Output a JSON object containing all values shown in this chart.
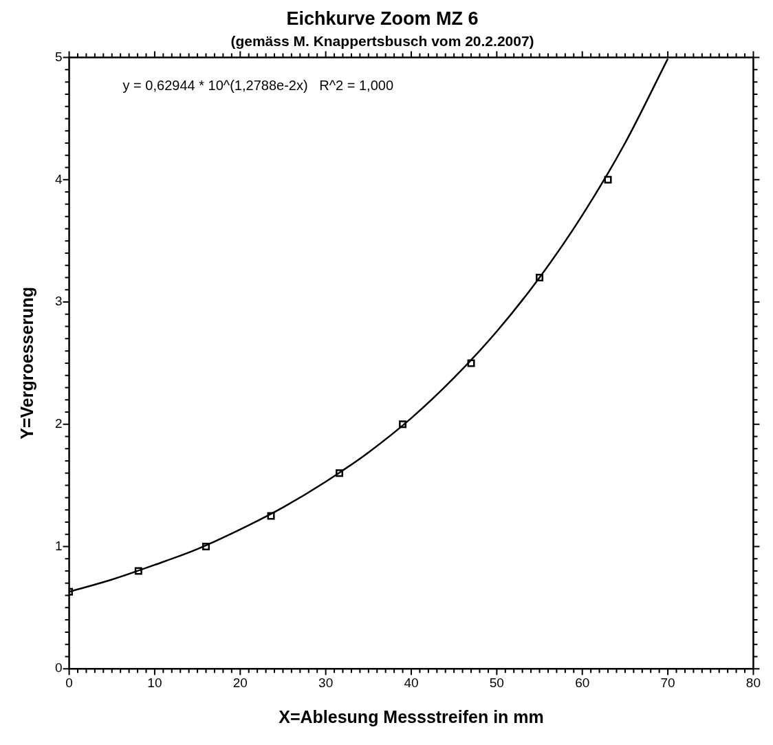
{
  "chart_data": {
    "type": "scatter",
    "title": "Eichkurve Zoom MZ 6",
    "subtitle": "(gemäss M. Knappertsbusch vom 20.2.2007)",
    "xlabel": "X=Ablesung Messstreifen in mm",
    "ylabel": "Y=Vergroesserung",
    "annotations": [
      "y = 0,62944 * 10^(1,2788e-2x)   R^2 = 1,000"
    ],
    "series": [
      {
        "type": "scatter",
        "color": "#000000",
        "marker": "square",
        "x": [
          0,
          8.1,
          16,
          23.6,
          31.6,
          39,
          47,
          55,
          63
        ],
        "values": [
          0.63,
          0.8,
          1.0,
          1.25,
          1.6,
          2.0,
          2.5,
          3.2,
          4.0
        ]
      },
      {
        "type": "line",
        "color": "#000000",
        "marker": "none",
        "line_style": "solid",
        "x": [
          0,
          5,
          10,
          15,
          20,
          25,
          30,
          35,
          40,
          45,
          50,
          55,
          60,
          65,
          70
        ],
        "values": [
          0.63,
          0.73,
          0.85,
          0.98,
          1.14,
          1.32,
          1.53,
          1.77,
          2.05,
          2.38,
          2.76,
          3.2,
          3.71,
          4.3,
          4.99
        ]
      }
    ],
    "xlim": [
      0,
      80
    ],
    "ylim": [
      0,
      5
    ],
    "grid": false,
    "legend": false,
    "xticks": [
      0,
      {
        "value": 1,
        "label": null
      },
      {
        "value": 2,
        "label": null
      },
      {
        "value": 3,
        "label": null
      },
      {
        "value": 4,
        "label": null
      },
      {
        "value": 5,
        "label": null
      },
      {
        "value": 6,
        "label": null
      },
      {
        "value": 7,
        "label": null
      },
      {
        "value": 8,
        "label": null
      },
      {
        "value": 9,
        "label": null
      },
      10,
      {
        "value": 11,
        "label": null
      },
      {
        "value": 12,
        "label": null
      },
      {
        "value": 13,
        "label": null
      },
      {
        "value": 14,
        "label": null
      },
      {
        "value": 15,
        "label": null
      },
      {
        "value": 16,
        "label": null
      },
      {
        "value": 17,
        "label": null
      },
      {
        "value": 18,
        "label": null
      },
      {
        "value": 19,
        "label": null
      },
      20,
      {
        "value": 21,
        "label": null
      },
      {
        "value": 22,
        "label": null
      },
      {
        "value": 23,
        "label": null
      },
      {
        "value": 24,
        "label": null
      },
      {
        "value": 25,
        "label": null
      },
      {
        "value": 26,
        "label": null
      },
      {
        "value": 27,
        "label": null
      },
      {
        "value": 28,
        "label": null
      },
      {
        "value": 29,
        "label": null
      },
      30,
      {
        "value": 31,
        "label": null
      },
      {
        "value": 32,
        "label": null
      },
      {
        "value": 33,
        "label": null
      },
      {
        "value": 34,
        "label": null
      },
      {
        "value": 35,
        "label": null
      },
      {
        "value": 36,
        "label": null
      },
      {
        "value": 37,
        "label": null
      },
      {
        "value": 38,
        "label": null
      },
      {
        "value": 39,
        "label": null
      },
      40,
      {
        "value": 41,
        "label": null
      },
      {
        "value": 42,
        "label": null
      },
      {
        "value": 43,
        "label": null
      },
      {
        "value": 44,
        "label": null
      },
      {
        "value": 45,
        "label": null
      },
      {
        "value": 46,
        "label": null
      },
      {
        "value": 47,
        "label": null
      },
      {
        "value": 48,
        "label": null
      },
      {
        "value": 49,
        "label": null
      },
      50,
      {
        "value": 51,
        "label": null
      },
      {
        "value": 52,
        "label": null
      },
      {
        "value": 53,
        "label": null
      },
      {
        "value": 54,
        "label": null
      },
      {
        "value": 55,
        "label": null
      },
      {
        "value": 56,
        "label": null
      },
      {
        "value": 57,
        "label": null
      },
      {
        "value": 58,
        "label": null
      },
      {
        "value": 59,
        "label": null
      },
      60,
      {
        "value": 61,
        "label": null
      },
      {
        "value": 62,
        "label": null
      },
      {
        "value": 63,
        "label": null
      },
      {
        "value": 64,
        "label": null
      },
      {
        "value": 65,
        "label": null
      },
      {
        "value": 66,
        "label": null
      },
      {
        "value": 67,
        "label": null
      },
      {
        "value": 68,
        "label": null
      },
      {
        "value": 69,
        "label": null
      },
      70,
      {
        "value": 71,
        "label": null
      },
      {
        "value": 72,
        "label": null
      },
      {
        "value": 73,
        "label": null
      },
      {
        "value": 74,
        "label": null
      },
      {
        "value": 75,
        "label": null
      },
      {
        "value": 76,
        "label": null
      },
      {
        "value": 77,
        "label": null
      },
      {
        "value": 78,
        "label": null
      },
      {
        "value": 79,
        "label": null
      },
      80
    ],
    "yticks": [
      0,
      {
        "value": 0.1,
        "label": null
      },
      {
        "value": 0.2,
        "label": null
      },
      {
        "value": 0.3,
        "label": null
      },
      {
        "value": 0.4,
        "label": null
      },
      {
        "value": 0.5,
        "label": null
      },
      {
        "value": 0.6,
        "label": null
      },
      {
        "value": 0.7,
        "label": null
      },
      {
        "value": 0.8,
        "label": null
      },
      {
        "value": 0.9,
        "label": null
      },
      1,
      {
        "value": 1.1,
        "label": null
      },
      {
        "value": 1.2,
        "label": null
      },
      {
        "value": 1.3,
        "label": null
      },
      {
        "value": 1.4,
        "label": null
      },
      {
        "value": 1.5,
        "label": null
      },
      {
        "value": 1.6,
        "label": null
      },
      {
        "value": 1.7,
        "label": null
      },
      {
        "value": 1.8,
        "label": null
      },
      {
        "value": 1.9,
        "label": null
      },
      2,
      {
        "value": 2.1,
        "label": null
      },
      {
        "value": 2.2,
        "label": null
      },
      {
        "value": 2.3,
        "label": null
      },
      {
        "value": 2.4,
        "label": null
      },
      {
        "value": 2.5,
        "label": null
      },
      {
        "value": 2.6,
        "label": null
      },
      {
        "value": 2.7,
        "label": null
      },
      {
        "value": 2.8,
        "label": null
      },
      {
        "value": 2.9,
        "label": null
      },
      3,
      {
        "value": 3.1,
        "label": null
      },
      {
        "value": 3.2,
        "label": null
      },
      {
        "value": 3.3,
        "label": null
      },
      {
        "value": 3.4,
        "label": null
      },
      {
        "value": 3.5,
        "label": null
      },
      {
        "value": 3.6,
        "label": null
      },
      {
        "value": 3.7,
        "label": null
      },
      {
        "value": 3.8,
        "label": null
      },
      {
        "value": 3.9,
        "label": null
      },
      4,
      {
        "value": 4.1,
        "label": null
      },
      {
        "value": 4.2,
        "label": null
      },
      {
        "value": 4.3,
        "label": null
      },
      {
        "value": 4.4,
        "label": null
      },
      {
        "value": 4.5,
        "label": null
      },
      {
        "value": 4.6,
        "label": null
      },
      {
        "value": 4.7,
        "label": null
      },
      {
        "value": 4.8,
        "label": null
      },
      {
        "value": 4.9,
        "label": null
      },
      5
    ]
  }
}
